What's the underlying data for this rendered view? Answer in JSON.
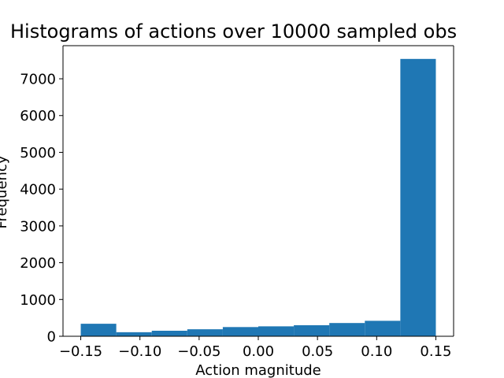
{
  "chart_data": {
    "type": "bar",
    "title": "Histograms of actions over 10000 sampled obs",
    "xlabel": "Action magnitude",
    "ylabel": "Frequency",
    "xlim": [
      -0.165,
      0.165
    ],
    "ylim": [
      0,
      7900
    ],
    "bar_color": "#1f77b4",
    "bins": [
      {
        "x0": -0.15,
        "x1": -0.12,
        "count": 340
      },
      {
        "x0": -0.12,
        "x1": -0.09,
        "count": 110
      },
      {
        "x0": -0.09,
        "x1": -0.06,
        "count": 150
      },
      {
        "x0": -0.06,
        "x1": -0.03,
        "count": 190
      },
      {
        "x0": -0.03,
        "x1": 0.0,
        "count": 250
      },
      {
        "x0": 0.0,
        "x1": 0.03,
        "count": 270
      },
      {
        "x0": 0.03,
        "x1": 0.06,
        "count": 300
      },
      {
        "x0": 0.06,
        "x1": 0.09,
        "count": 360
      },
      {
        "x0": 0.09,
        "x1": 0.12,
        "count": 420
      },
      {
        "x0": 0.12,
        "x1": 0.15,
        "count": 7540
      }
    ],
    "x_ticks": [
      {
        "value": -0.15,
        "label": "−0.15"
      },
      {
        "value": -0.1,
        "label": "−0.10"
      },
      {
        "value": -0.05,
        "label": "−0.05"
      },
      {
        "value": 0.0,
        "label": "0.00"
      },
      {
        "value": 0.05,
        "label": "0.05"
      },
      {
        "value": 0.1,
        "label": "0.10"
      },
      {
        "value": 0.15,
        "label": "0.15"
      }
    ],
    "y_ticks": [
      {
        "value": 0,
        "label": "0"
      },
      {
        "value": 1000,
        "label": "1000"
      },
      {
        "value": 2000,
        "label": "2000"
      },
      {
        "value": 3000,
        "label": "3000"
      },
      {
        "value": 4000,
        "label": "4000"
      },
      {
        "value": 5000,
        "label": "5000"
      },
      {
        "value": 6000,
        "label": "6000"
      },
      {
        "value": 7000,
        "label": "7000"
      }
    ]
  }
}
